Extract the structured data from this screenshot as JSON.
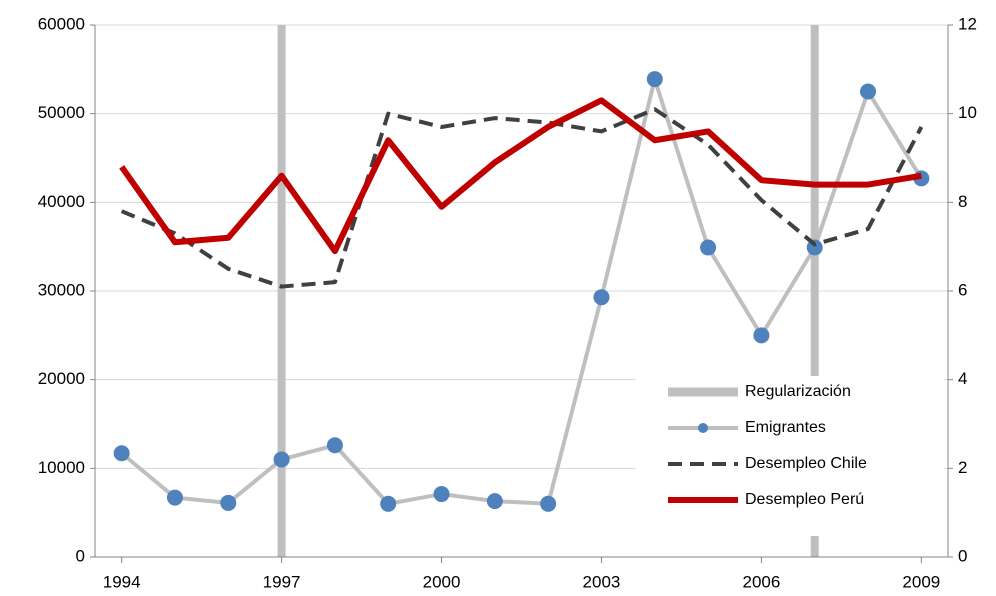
{
  "chart_data": {
    "type": "line",
    "x": [
      1994,
      1995,
      1996,
      1997,
      1998,
      1999,
      2000,
      2001,
      2002,
      2003,
      2004,
      2005,
      2006,
      2007,
      2008,
      2009
    ],
    "xlim": [
      1993.5,
      2009.5
    ],
    "xticks": [
      1994,
      1997,
      2000,
      2003,
      2006,
      2009
    ],
    "ylim": [
      0,
      60000
    ],
    "yticks": [
      0,
      10000,
      20000,
      30000,
      40000,
      50000,
      60000
    ],
    "y2lim": [
      0,
      12
    ],
    "y2ticks": [
      0,
      2,
      4,
      6,
      8,
      10,
      12
    ],
    "grid": true,
    "legend": "lower right",
    "series": [
      {
        "name": "Regularización",
        "type": "bar",
        "color": "#bfbfbf",
        "values": [
          null,
          null,
          null,
          60000,
          null,
          null,
          null,
          null,
          null,
          null,
          null,
          null,
          null,
          60000,
          null,
          null
        ]
      },
      {
        "name": "Emigrantes",
        "type": "line",
        "color": "#bfbfbf",
        "marker": "o",
        "marker_color": "#4f81bd",
        "values": [
          11700,
          6700,
          6100,
          11000,
          12600,
          6000,
          7100,
          6300,
          6000,
          29300,
          53900,
          34900,
          25000,
          34900,
          52500,
          42700
        ]
      },
      {
        "name": "Desempleo Chile",
        "type": "line",
        "color": "#404040",
        "linestyle": "dashed",
        "axis": "y2",
        "values": [
          7.8,
          7.3,
          6.5,
          6.1,
          6.2,
          10.0,
          9.7,
          9.9,
          9.8,
          9.6,
          10.1,
          9.3,
          8.05,
          7.05,
          7.4,
          9.7
        ]
      },
      {
        "name": "Desempleo Perú",
        "type": "line",
        "color": "#c00000",
        "axis": "y2",
        "values": [
          8.8,
          7.1,
          7.2,
          8.6,
          6.9,
          9.4,
          7.9,
          8.9,
          9.7,
          10.3,
          9.4,
          9.6,
          8.5,
          8.4,
          8.4,
          8.6
        ]
      }
    ]
  }
}
